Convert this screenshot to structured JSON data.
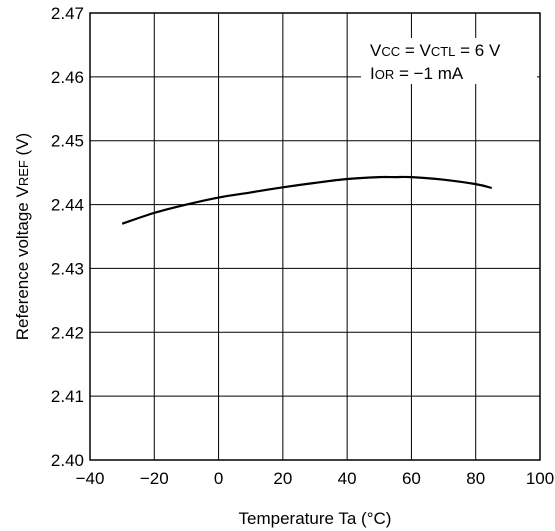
{
  "chart_data": {
    "type": "line",
    "xlabel": "Temperature Ta (°C)",
    "ylabel": {
      "main": "Reference voltage V",
      "sub": "REF",
      "unit": " (V)"
    },
    "xlim": [
      -40,
      100
    ],
    "ylim": [
      2.4,
      2.47
    ],
    "xticks": [
      -40,
      -20,
      0,
      20,
      40,
      60,
      80,
      100
    ],
    "xtick_labels": [
      "−40",
      "−20",
      "0",
      "20",
      "40",
      "60",
      "80",
      "100"
    ],
    "yticks": [
      2.4,
      2.41,
      2.42,
      2.43,
      2.44,
      2.45,
      2.46,
      2.47
    ],
    "ytick_labels": [
      "2.40",
      "2.41",
      "2.42",
      "2.43",
      "2.44",
      "2.45",
      "2.46",
      "2.47"
    ],
    "grid": true,
    "series": [
      {
        "x": [
          -30,
          -20,
          -10,
          0,
          10,
          20,
          30,
          40,
          50,
          55,
          60,
          70,
          80,
          85
        ],
        "y": [
          2.437,
          2.4387,
          2.44,
          2.4411,
          2.4419,
          2.4427,
          2.4434,
          2.444,
          2.4443,
          2.4443,
          2.4443,
          2.4439,
          2.4432,
          2.4426
        ]
      }
    ],
    "annotation": {
      "line1": [
        {
          "text": "V",
          "sub": false
        },
        {
          "text": "CC",
          "sub": true
        },
        {
          "text": " = V",
          "sub": false
        },
        {
          "text": "CTL",
          "sub": true
        },
        {
          "text": " = 6 V",
          "sub": false
        }
      ],
      "line2": [
        {
          "text": "I",
          "sub": false
        },
        {
          "text": "OR",
          "sub": true
        },
        {
          "text": " = −1 mA",
          "sub": false
        }
      ]
    },
    "colors": {
      "line": "#000000",
      "grid": "#000000"
    }
  }
}
